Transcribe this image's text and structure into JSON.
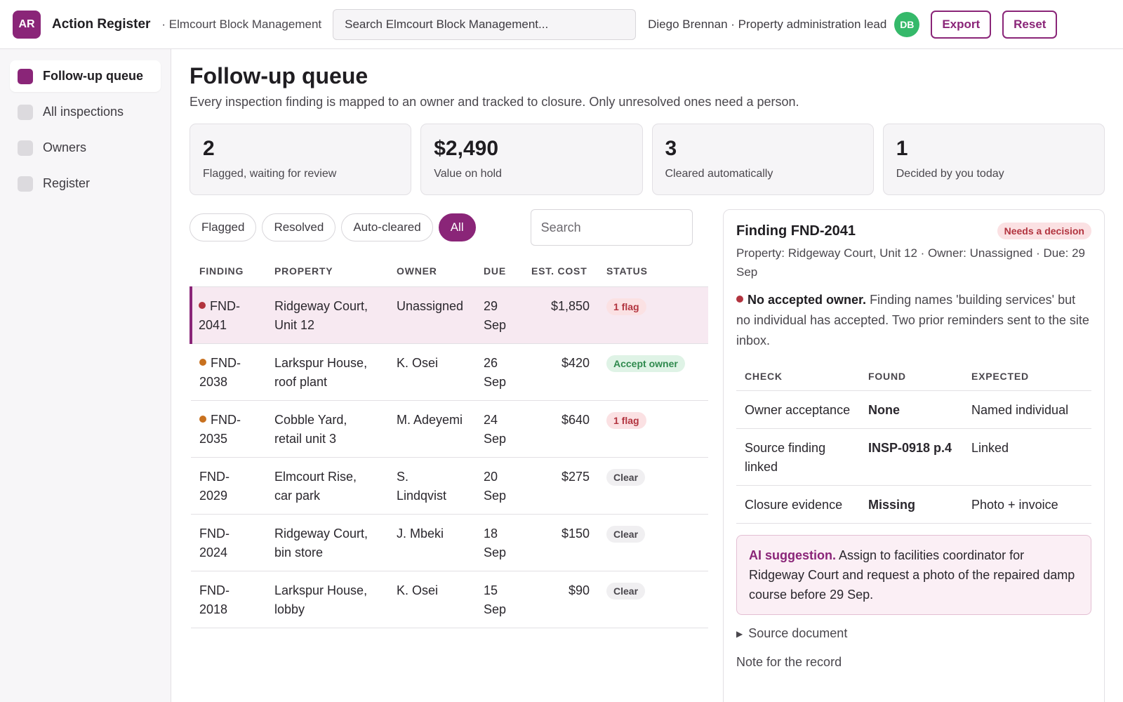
{
  "app": {
    "logo": "AR",
    "title": "Action Register",
    "subtitle": "· Elmcourt Block Management",
    "search_placeholder": "Search Elmcourt Block Management...",
    "user": "Diego Brennan · Property administration lead",
    "avatar": "DB",
    "export_label": "Export",
    "reset_label": "Reset"
  },
  "sidebar": {
    "items": [
      {
        "label": "Follow-up queue",
        "active": true
      },
      {
        "label": "All inspections",
        "active": false
      },
      {
        "label": "Owners",
        "active": false
      },
      {
        "label": "Register",
        "active": false
      }
    ]
  },
  "page": {
    "title": "Follow-up queue",
    "description": "Every inspection finding is mapped to an owner and tracked to closure. Only unresolved ones need a person."
  },
  "stats": [
    {
      "value": "2",
      "label": "Flagged, waiting for review"
    },
    {
      "value": "$2,490",
      "label": "Value on hold"
    },
    {
      "value": "3",
      "label": "Cleared automatically"
    },
    {
      "value": "1",
      "label": "Decided by you today"
    }
  ],
  "filters": {
    "chips": [
      "Flagged",
      "Resolved",
      "Auto-cleared",
      "All"
    ],
    "active": "All",
    "search_placeholder": "Search"
  },
  "table": {
    "columns": [
      "FINDING",
      "PROPERTY",
      "OWNER",
      "DUE",
      "EST. COST",
      "STATUS"
    ],
    "rows": [
      {
        "finding": "FND-2041",
        "finding_a": "FND-",
        "finding_b": "2041",
        "property_a": "Ridgeway Court,",
        "property_b": "Unit 12",
        "owner_a": "Unassigned",
        "owner_b": "",
        "due_a": "29",
        "due_b": "Sep",
        "cost": "$1,850",
        "status": "1 flag",
        "status_kind": "flag",
        "severity": "red",
        "selected": true
      },
      {
        "finding": "FND-2038",
        "finding_a": "FND-",
        "finding_b": "2038",
        "property_a": "Larkspur House,",
        "property_b": "roof plant",
        "owner_a": "K. Osei",
        "owner_b": "",
        "due_a": "26",
        "due_b": "Sep",
        "cost": "$420",
        "status": "Accept owner",
        "status_kind": "accept",
        "severity": "orange",
        "selected": false
      },
      {
        "finding": "FND-2035",
        "finding_a": "FND-",
        "finding_b": "2035",
        "property_a": "Cobble Yard,",
        "property_b": "retail unit 3",
        "owner_a": "M. Adeyemi",
        "owner_b": "",
        "due_a": "24",
        "due_b": "Sep",
        "cost": "$640",
        "status": "1 flag",
        "status_kind": "flag",
        "severity": "orange",
        "selected": false
      },
      {
        "finding": "FND-2029",
        "finding_a": "FND-",
        "finding_b": "2029",
        "property_a": "Elmcourt Rise,",
        "property_b": "car park",
        "owner_a": "S.",
        "owner_b": "Lindqvist",
        "due_a": "20",
        "due_b": "Sep",
        "cost": "$275",
        "status": "Clear",
        "status_kind": "clear",
        "severity": "",
        "selected": false
      },
      {
        "finding": "FND-2024",
        "finding_a": "FND-",
        "finding_b": "2024",
        "property_a": "Ridgeway Court,",
        "property_b": "bin store",
        "owner_a": "J. Mbeki",
        "owner_b": "",
        "due_a": "18",
        "due_b": "Sep",
        "cost": "$150",
        "status": "Clear",
        "status_kind": "clear",
        "severity": "",
        "selected": false
      },
      {
        "finding": "FND-2018",
        "finding_a": "FND-",
        "finding_b": "2018",
        "property_a": "Larkspur House,",
        "property_b": "lobby",
        "owner_a": "K. Osei",
        "owner_b": "",
        "due_a": "15",
        "due_b": "Sep",
        "cost": "$90",
        "status": "Clear",
        "status_kind": "clear",
        "severity": "",
        "selected": false
      }
    ]
  },
  "detail": {
    "title": "Finding FND-2041",
    "badge": "Needs a decision",
    "meta": "Property: Ridgeway Court, Unit 12 · Owner: Unassigned · Due: 29 Sep",
    "issue_strong": "No accepted owner.",
    "issue_text": " Finding names 'building services' but no individual has accepted. Two prior reminders sent to the site inbox.",
    "checks_columns": [
      "CHECK",
      "FOUND",
      "EXPECTED"
    ],
    "checks": [
      {
        "check": "Owner acceptance",
        "found": "None",
        "found_kind": "bad",
        "expected": "Named individual"
      },
      {
        "check": "Source finding linked",
        "found": "INSP-0918 p.4",
        "found_kind": "good",
        "expected": "Linked"
      },
      {
        "check": "Closure evidence",
        "found": "Missing",
        "found_kind": "bad",
        "expected": "Photo + invoice"
      }
    ],
    "ai_label": "AI suggestion.",
    "ai_text": " Assign to facilities coordinator for Ridgeway Court and request a photo of the repaired damp course before 29 Sep.",
    "source_doc": "Source document",
    "note_label": "Note for the record"
  },
  "colors": {
    "brand": "#8a2578",
    "flag": "#b2343f",
    "accept": "#2f8a4e",
    "avatar": "#35b96a"
  }
}
